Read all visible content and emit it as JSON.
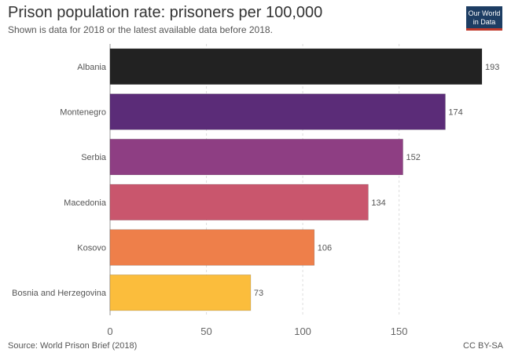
{
  "header": {
    "title": "Prison population rate: prisoners per 100,000",
    "subtitle": "Shown is data for 2018 or the latest available data before 2018.",
    "logo_line1": "Our World",
    "logo_line2": "in Data"
  },
  "footer": {
    "source": "Source: World Prison Brief (2018)",
    "license": "CC BY-SA"
  },
  "chart_data": {
    "type": "bar",
    "orientation": "horizontal",
    "categories": [
      "Albania",
      "Montenegro",
      "Serbia",
      "Macedonia",
      "Kosovo",
      "Bosnia and Herzegovina"
    ],
    "values": [
      193,
      174,
      152,
      134,
      106,
      73
    ],
    "colors": [
      "#222222",
      "#5b2c78",
      "#8e3e83",
      "#c9566d",
      "#ee7f4a",
      "#fbbd3c"
    ],
    "xlim": [
      0,
      193
    ],
    "xticks": [
      0,
      50,
      100,
      150
    ],
    "grid": true,
    "data_labels": true
  }
}
